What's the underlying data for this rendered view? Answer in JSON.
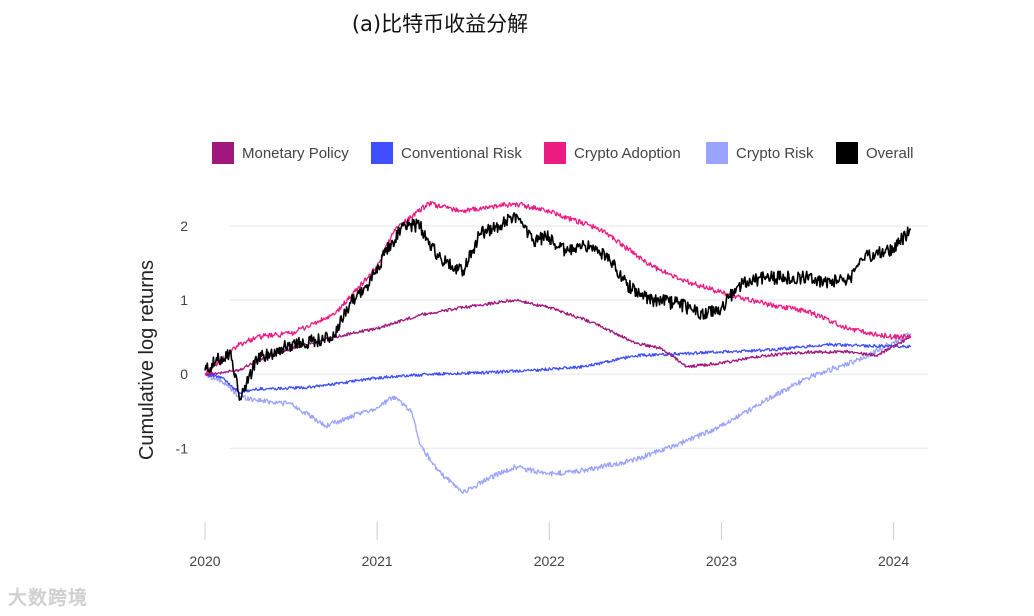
{
  "chart_data": {
    "type": "line",
    "title": "(a)比特币收益分解",
    "xlabel": "",
    "ylabel": "Cumulative log returns",
    "xlim": [
      2020.0,
      2024.2
    ],
    "ylim": [
      -1.9,
      2.35
    ],
    "xticks": [
      2020,
      2021,
      2022,
      2023,
      2024
    ],
    "xtick_labels": [
      "2020",
      "2021",
      "2022",
      "2023",
      "2024"
    ],
    "yticks": [
      -1,
      0,
      1,
      2
    ],
    "ytick_labels": [
      "-1",
      "0",
      "1",
      "2"
    ],
    "grid": "horizontal",
    "legend_position": "top",
    "series": [
      {
        "name": "Monetary Policy",
        "color": "#a0177e",
        "x": [
          2020.0,
          2020.1,
          2020.2,
          2020.3,
          2020.5,
          2020.75,
          2021.0,
          2021.25,
          2021.5,
          2021.8,
          2022.0,
          2022.25,
          2022.5,
          2022.65,
          2022.8,
          2023.0,
          2023.25,
          2023.5,
          2023.75,
          2023.9,
          2024.1
        ],
        "y": [
          0.0,
          0.02,
          0.06,
          0.18,
          0.35,
          0.5,
          0.62,
          0.8,
          0.9,
          1.0,
          0.9,
          0.7,
          0.42,
          0.35,
          0.1,
          0.15,
          0.25,
          0.3,
          0.3,
          0.25,
          0.5
        ]
      },
      {
        "name": "Conventional Risk",
        "color": "#3e4fff",
        "x": [
          2020.0,
          2020.1,
          2020.2,
          2020.3,
          2020.6,
          2021.0,
          2021.3,
          2021.6,
          2021.9,
          2022.2,
          2022.5,
          2022.8,
          2023.0,
          2023.3,
          2023.6,
          2023.9,
          2024.1
        ],
        "y": [
          0.0,
          -0.05,
          -0.25,
          -0.2,
          -0.18,
          -0.05,
          0.0,
          0.02,
          0.05,
          0.1,
          0.25,
          0.28,
          0.3,
          0.33,
          0.4,
          0.38,
          0.37
        ]
      },
      {
        "name": "Crypto Adoption",
        "color": "#ec1b82",
        "x": [
          2020.0,
          2020.1,
          2020.2,
          2020.3,
          2020.5,
          2020.75,
          2021.0,
          2021.1,
          2021.3,
          2021.5,
          2021.8,
          2022.0,
          2022.3,
          2022.6,
          2022.8,
          2023.0,
          2023.25,
          2023.5,
          2023.75,
          2024.0,
          2024.1
        ],
        "y": [
          0.0,
          0.2,
          0.4,
          0.5,
          0.55,
          0.8,
          1.45,
          1.95,
          2.3,
          2.2,
          2.3,
          2.2,
          1.95,
          1.45,
          1.25,
          1.1,
          0.95,
          0.85,
          0.6,
          0.5,
          0.5
        ]
      },
      {
        "name": "Crypto Risk",
        "color": "#9aa3ff",
        "x": [
          2020.0,
          2020.1,
          2020.2,
          2020.3,
          2020.5,
          2020.7,
          2021.0,
          2021.1,
          2021.2,
          2021.25,
          2021.35,
          2021.5,
          2021.65,
          2021.8,
          2022.0,
          2022.2,
          2022.5,
          2022.8,
          2023.0,
          2023.3,
          2023.5,
          2023.8,
          2024.1
        ],
        "y": [
          0.0,
          -0.1,
          -0.3,
          -0.35,
          -0.4,
          -0.7,
          -0.45,
          -0.3,
          -0.5,
          -0.95,
          -1.3,
          -1.6,
          -1.4,
          -1.25,
          -1.35,
          -1.3,
          -1.15,
          -0.9,
          -0.7,
          -0.3,
          -0.05,
          0.2,
          0.55
        ]
      },
      {
        "name": "Overall",
        "color": "#000000",
        "x": [
          2020.0,
          2020.08,
          2020.15,
          2020.2,
          2020.3,
          2020.5,
          2020.75,
          2020.85,
          2020.95,
          2021.05,
          2021.15,
          2021.25,
          2021.3,
          2021.4,
          2021.5,
          2021.6,
          2021.75,
          2021.8,
          2021.9,
          2022.0,
          2022.1,
          2022.2,
          2022.35,
          2022.45,
          2022.6,
          2022.75,
          2022.9,
          2023.0,
          2023.1,
          2023.25,
          2023.5,
          2023.6,
          2023.75,
          2023.85,
          2024.0,
          2024.1
        ],
        "y": [
          0.05,
          0.2,
          0.3,
          -0.35,
          0.2,
          0.4,
          0.5,
          1.0,
          1.2,
          1.65,
          2.0,
          2.0,
          1.75,
          1.5,
          1.4,
          1.9,
          2.05,
          2.15,
          1.8,
          1.85,
          1.65,
          1.75,
          1.55,
          1.2,
          1.0,
          0.95,
          0.8,
          0.9,
          1.2,
          1.3,
          1.3,
          1.25,
          1.3,
          1.6,
          1.7,
          1.95
        ]
      }
    ]
  },
  "watermark": "大数跨境"
}
